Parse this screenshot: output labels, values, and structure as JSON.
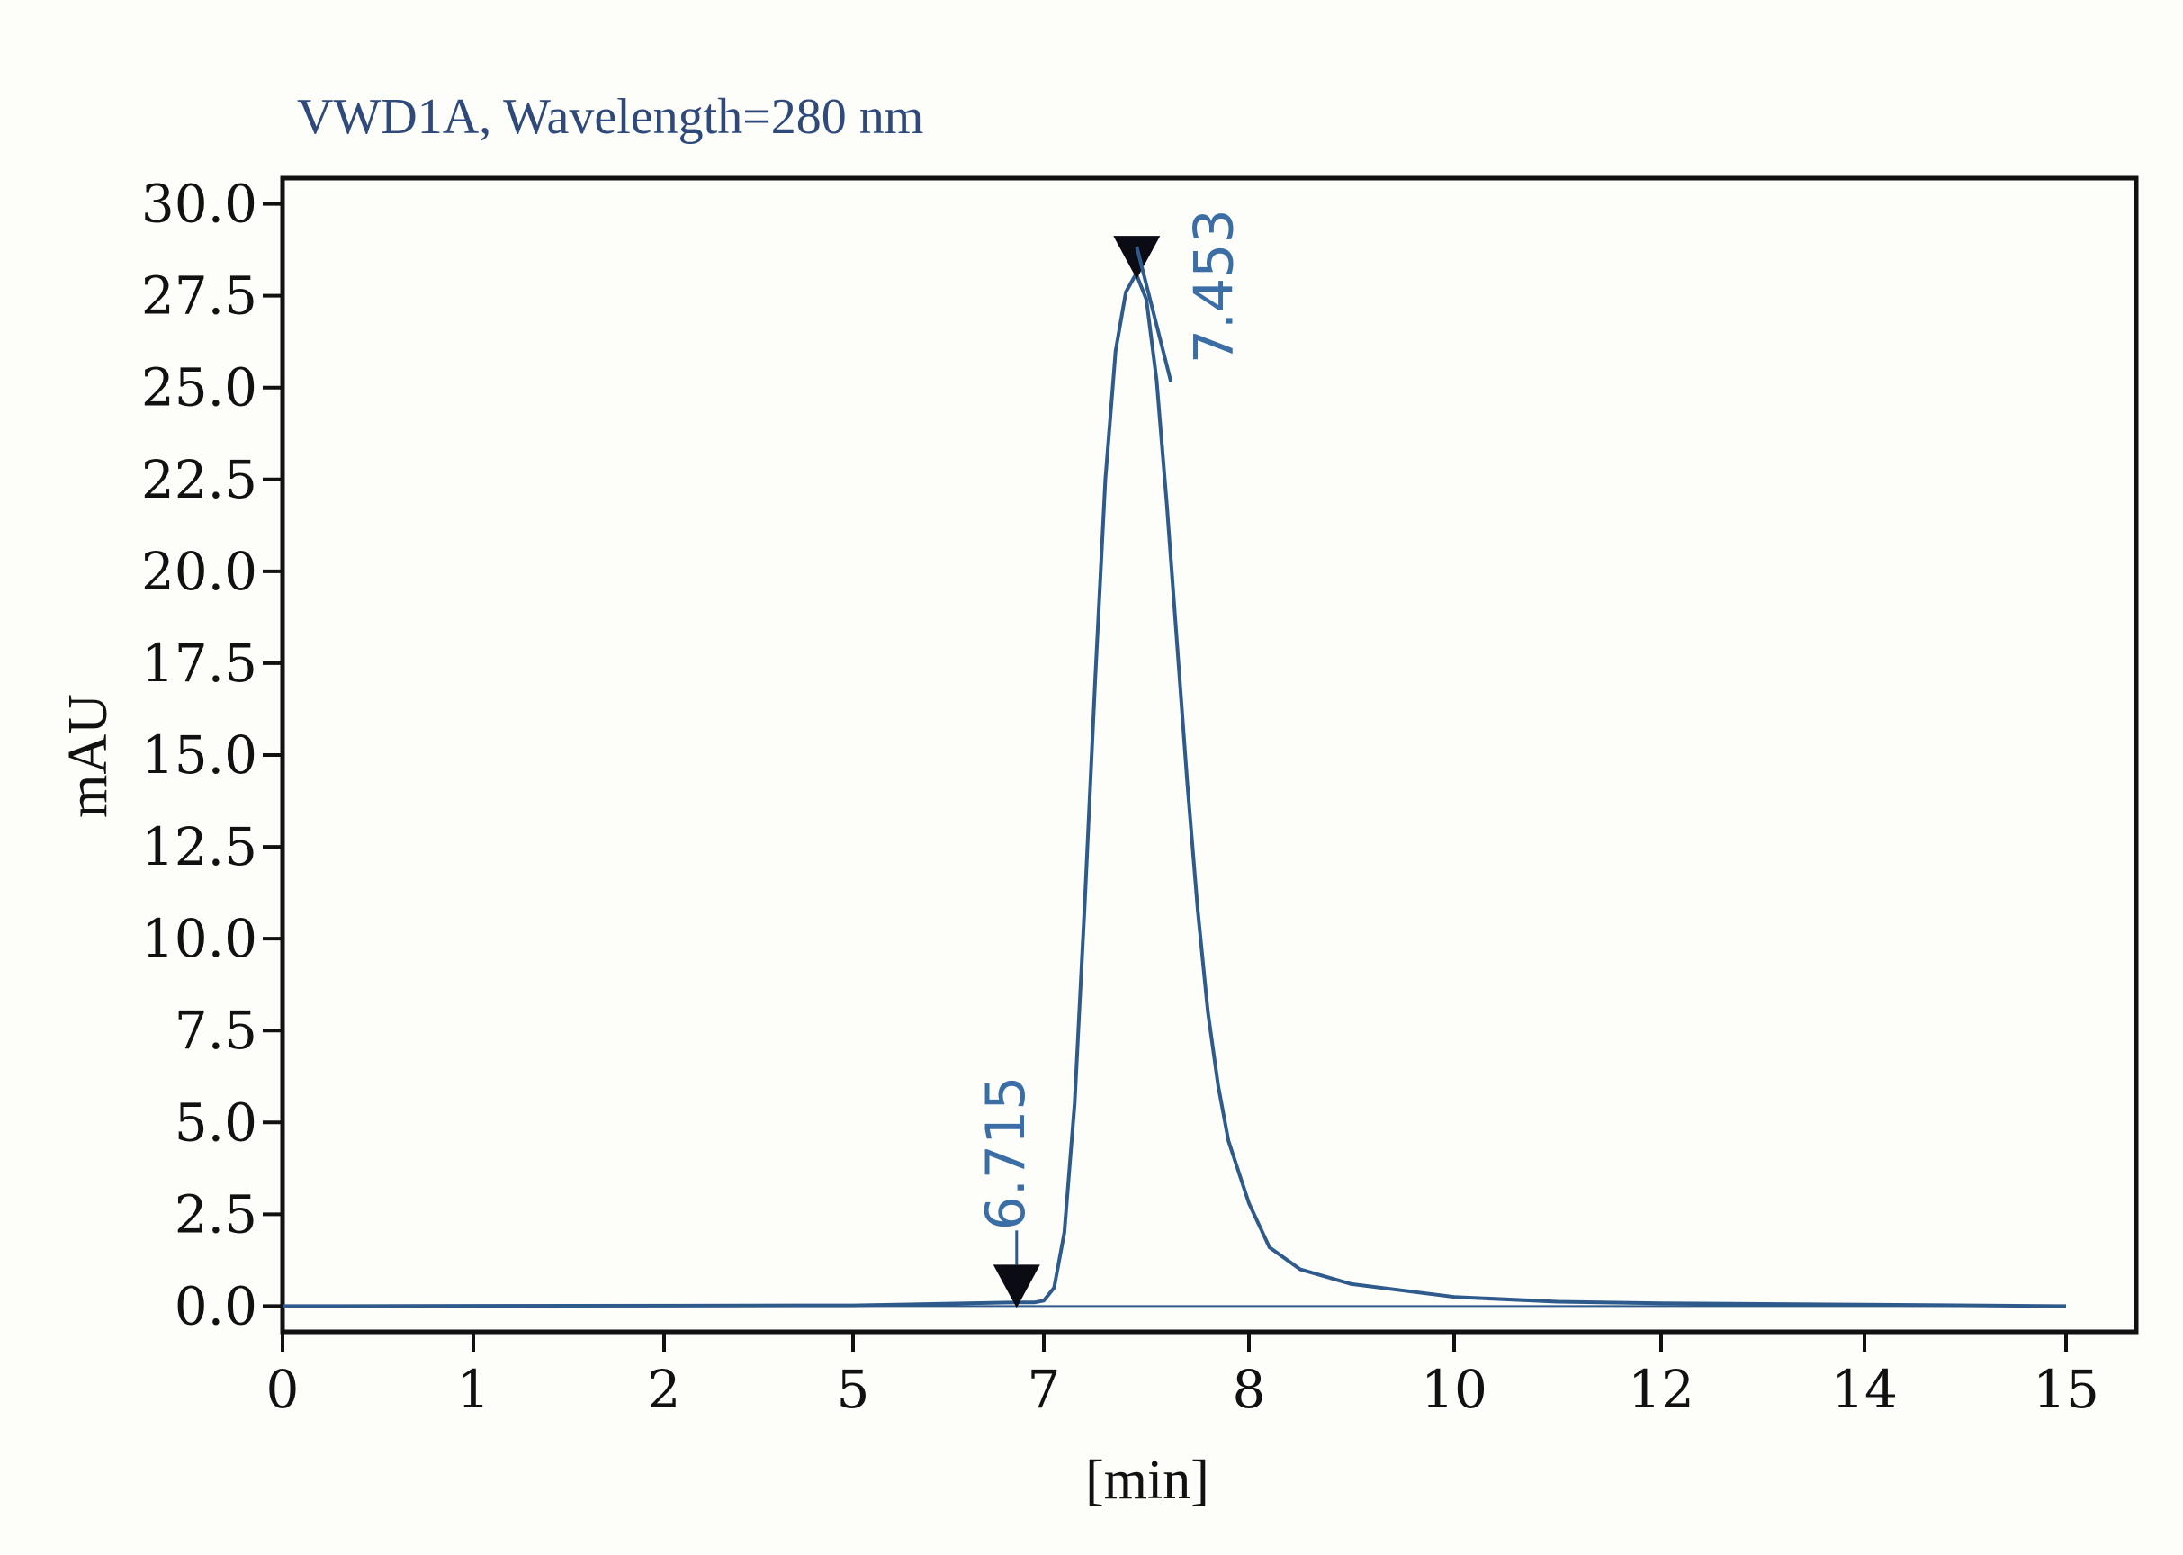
{
  "chart_data": {
    "type": "line",
    "title": "VWD1A, Wavelength=280 nm",
    "xlabel": "[min]",
    "ylabel": "mAU",
    "x_tick_labels": [
      "0",
      "1",
      "2",
      "5",
      "7",
      "8",
      "10",
      "12",
      "14",
      "15"
    ],
    "y_ticks": [
      0.0,
      2.5,
      5.0,
      7.5,
      10.0,
      12.5,
      15.0,
      17.5,
      20.0,
      22.5,
      25.0,
      27.5,
      30.0
    ],
    "y_tick_labels": [
      "0.0",
      "2.5",
      "5.0",
      "7.5",
      "10.0",
      "12.5",
      "15.0",
      "17.5",
      "20.0",
      "22.5",
      "25.0",
      "27.5",
      "30.0"
    ],
    "ylim": [
      -0.7,
      30.7
    ],
    "grid": false,
    "series": [
      {
        "color": "#2f5a8c",
        "points": [
          [
            0,
            0.0
          ],
          [
            5,
            0.02
          ],
          [
            6.7,
            0.1
          ],
          [
            6.9,
            0.1
          ],
          [
            7.0,
            0.15
          ],
          [
            7.05,
            0.5
          ],
          [
            7.1,
            2.0
          ],
          [
            7.15,
            5.5
          ],
          [
            7.2,
            11.0
          ],
          [
            7.25,
            17.0
          ],
          [
            7.3,
            22.5
          ],
          [
            7.35,
            26.0
          ],
          [
            7.4,
            27.6
          ],
          [
            7.45,
            28.1
          ],
          [
            7.5,
            27.4
          ],
          [
            7.55,
            25.2
          ],
          [
            7.6,
            21.8
          ],
          [
            7.65,
            18.0
          ],
          [
            7.7,
            14.2
          ],
          [
            7.75,
            10.8
          ],
          [
            7.8,
            8.0
          ],
          [
            7.85,
            6.0
          ],
          [
            7.9,
            4.5
          ],
          [
            8.0,
            2.8
          ],
          [
            8.2,
            1.6
          ],
          [
            8.5,
            1.0
          ],
          [
            9.0,
            0.6
          ],
          [
            10,
            0.25
          ],
          [
            11,
            0.12
          ],
          [
            12,
            0.08
          ],
          [
            14,
            0.04
          ],
          [
            15,
            0.0
          ]
        ]
      }
    ],
    "annotations": [
      {
        "label": "6.715",
        "x": 6.715,
        "y": 0.1,
        "marker": "triangle-down"
      },
      {
        "label": "7.453",
        "x": 7.453,
        "y": 28.1,
        "marker": "triangle-down"
      }
    ],
    "title_color": "#2f4a7a",
    "line_color": "#2f5a8c",
    "label_color": "#3a6ea5"
  }
}
